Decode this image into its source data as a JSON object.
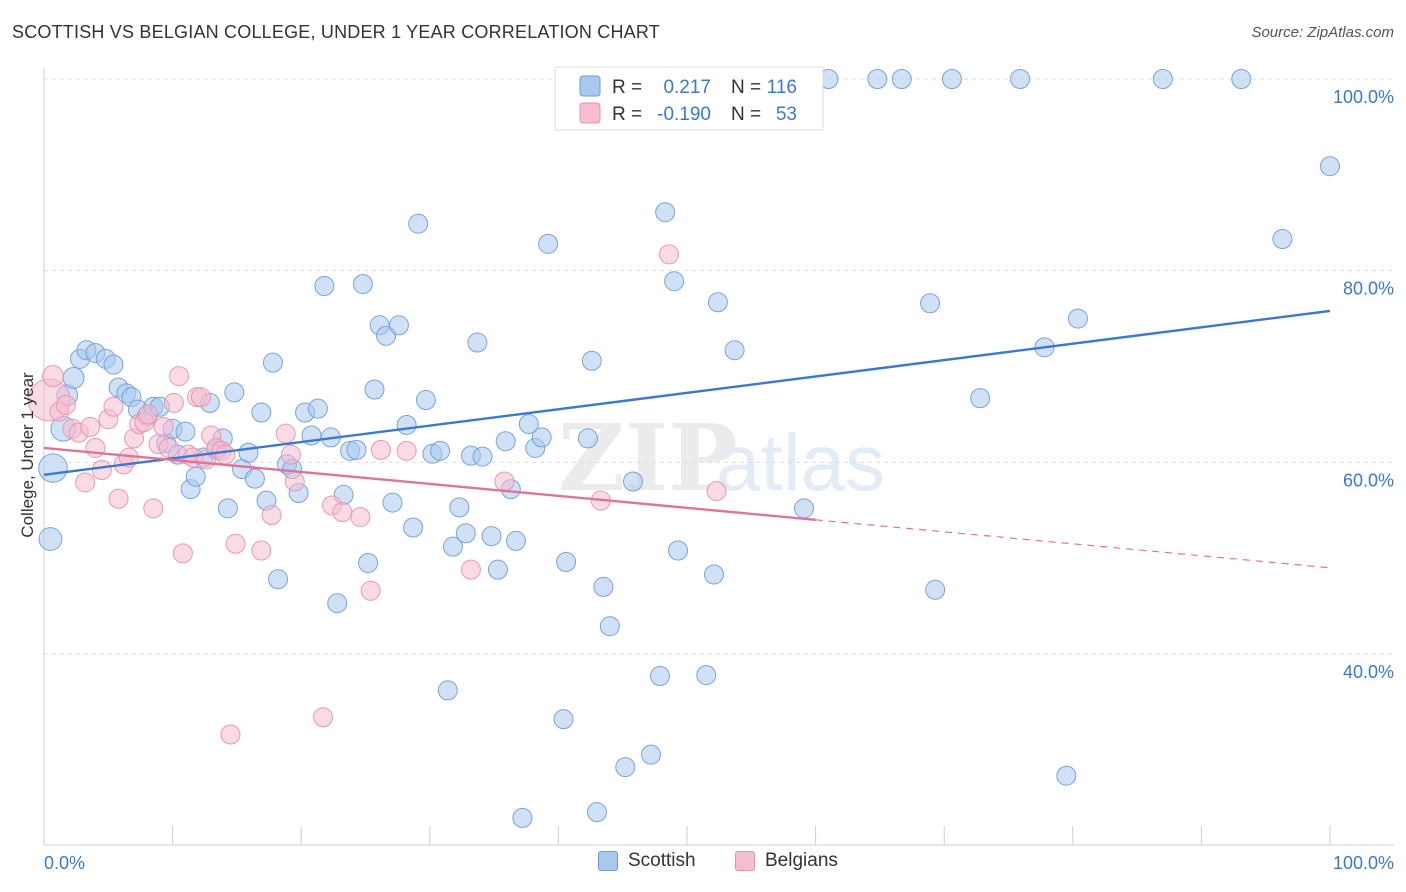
{
  "title": "SCOTTISH VS BELGIAN COLLEGE, UNDER 1 YEAR CORRELATION CHART",
  "source": "Source: ZipAtlas.com",
  "colors": {
    "scottish_fill": "#a9c8ef",
    "scottish_stroke": "#6c9bd8",
    "scottish_line": "#3b78d0",
    "belgian_fill": "#f6bcd0",
    "belgian_stroke": "#e590ad",
    "belgian_line": "#e0739a",
    "axis_label": "#3b78d0"
  },
  "legend": {
    "rows": [
      {
        "r_label": "R =",
        "r_value": "0.217",
        "n_label": "N =",
        "n_value": "116"
      },
      {
        "r_label": "R =",
        "r_value": "-0.190",
        "n_label": "N =",
        "n_value": "53"
      }
    ]
  },
  "watermark": {
    "part1": "ZIP",
    "part2": "atlas"
  },
  "chart_data": {
    "type": "scatter",
    "title": "SCOTTISH VS BELGIAN COLLEGE, UNDER 1 YEAR CORRELATION CHART",
    "xlabel": "",
    "ylabel": "College, Under 1 year",
    "xlim": [
      0,
      100
    ],
    "ylim": [
      22,
      102
    ],
    "x_tick_labels": [
      "0.0%",
      "100.0%"
    ],
    "y_ticks": [
      40,
      60,
      80,
      100
    ],
    "y_tick_labels": [
      "40.0%",
      "60.0%",
      "80.0%",
      "100.0%"
    ],
    "grid": true,
    "legend_position": "top-center",
    "series": [
      {
        "name": "Scottish",
        "regression": {
          "x": [
            0,
            100
          ],
          "y": [
            58.7,
            75.8
          ],
          "extend_dashed_to": null
        },
        "points": [
          [
            0.7,
            59.4,
            1.5
          ],
          [
            0.5,
            52.0,
            1.2
          ],
          [
            1.5,
            63.5,
            1.3
          ],
          [
            1.8,
            67.0,
            1.1
          ],
          [
            2.3,
            68.8,
            1.1
          ],
          [
            2.8,
            70.8,
            1.0
          ],
          [
            3.3,
            71.7,
            1.0
          ],
          [
            4.0,
            71.4,
            1.0
          ],
          [
            4.8,
            70.8,
            1.0
          ],
          [
            5.4,
            70.2,
            1.0
          ],
          [
            5.8,
            67.8,
            1.0
          ],
          [
            6.4,
            67.2,
            1.0
          ],
          [
            6.8,
            66.8,
            1.0
          ],
          [
            7.3,
            65.5,
            1.0
          ],
          [
            8.0,
            64.8,
            1.0
          ],
          [
            8.5,
            65.8,
            1.0
          ],
          [
            9.0,
            65.8,
            1.0
          ],
          [
            9.5,
            62.0,
            1.0
          ],
          [
            10.0,
            63.5,
            1.0
          ],
          [
            10.4,
            60.8,
            1.0
          ],
          [
            11.0,
            63.2,
            1.0
          ],
          [
            11.4,
            57.2,
            1.0
          ],
          [
            11.8,
            58.5,
            1.0
          ],
          [
            12.4,
            60.5,
            1.0
          ],
          [
            12.9,
            66.2,
            1.0
          ],
          [
            13.4,
            61.3,
            1.0
          ],
          [
            13.9,
            62.5,
            1.0
          ],
          [
            14.3,
            55.2,
            1.0
          ],
          [
            14.8,
            67.3,
            1.0
          ],
          [
            15.4,
            59.3,
            1.0
          ],
          [
            15.9,
            61.0,
            1.0
          ],
          [
            16.4,
            58.3,
            1.0
          ],
          [
            16.9,
            65.2,
            1.0
          ],
          [
            17.3,
            56.0,
            1.0
          ],
          [
            17.8,
            70.4,
            1.0
          ],
          [
            18.2,
            47.8,
            1.0
          ],
          [
            18.9,
            59.8,
            1.0
          ],
          [
            19.3,
            59.3,
            1.0
          ],
          [
            19.8,
            56.8,
            1.0
          ],
          [
            20.3,
            65.2,
            1.0
          ],
          [
            20.8,
            62.8,
            1.0
          ],
          [
            21.3,
            65.6,
            1.0
          ],
          [
            21.8,
            78.4,
            1.0
          ],
          [
            22.3,
            62.6,
            1.0
          ],
          [
            22.8,
            45.3,
            1.0
          ],
          [
            23.3,
            56.6,
            1.0
          ],
          [
            23.8,
            61.2,
            1.0
          ],
          [
            24.3,
            61.3,
            1.0
          ],
          [
            24.8,
            78.6,
            1.0
          ],
          [
            25.2,
            49.5,
            1.0
          ],
          [
            25.7,
            67.6,
            1.0
          ],
          [
            26.1,
            74.3,
            1.0
          ],
          [
            26.6,
            73.2,
            1.0
          ],
          [
            27.1,
            55.8,
            1.0
          ],
          [
            27.6,
            74.3,
            1.0
          ],
          [
            28.2,
            63.9,
            1.0
          ],
          [
            28.7,
            53.2,
            1.0
          ],
          [
            29.1,
            84.9,
            1.0
          ],
          [
            29.7,
            66.5,
            1.0
          ],
          [
            30.2,
            60.9,
            1.0
          ],
          [
            30.8,
            61.2,
            1.0
          ],
          [
            31.4,
            36.2,
            1.0
          ],
          [
            31.8,
            51.2,
            1.0
          ],
          [
            32.3,
            55.3,
            1.0
          ],
          [
            32.8,
            52.6,
            1.0
          ],
          [
            33.2,
            60.7,
            1.0
          ],
          [
            33.7,
            72.5,
            1.0
          ],
          [
            34.1,
            60.6,
            1.0
          ],
          [
            34.8,
            52.3,
            1.0
          ],
          [
            35.3,
            48.8,
            1.0
          ],
          [
            35.9,
            62.2,
            1.0
          ],
          [
            36.3,
            57.2,
            1.0
          ],
          [
            36.7,
            51.8,
            1.0
          ],
          [
            37.2,
            22.9,
            1.0
          ],
          [
            37.7,
            64.0,
            1.0
          ],
          [
            38.2,
            61.5,
            1.0
          ],
          [
            38.7,
            62.6,
            1.0
          ],
          [
            39.2,
            82.8,
            1.0
          ],
          [
            40.4,
            33.2,
            1.0
          ],
          [
            40.6,
            49.6,
            1.0
          ],
          [
            41.2,
            100.0,
            1.0
          ],
          [
            42.3,
            62.5,
            1.0
          ],
          [
            42.6,
            70.6,
            1.0
          ],
          [
            43.0,
            23.5,
            1.0
          ],
          [
            43.5,
            47.0,
            1.0
          ],
          [
            44.0,
            42.9,
            1.0
          ],
          [
            45.2,
            28.2,
            1.0
          ],
          [
            45.8,
            58.0,
            1.0
          ],
          [
            47.2,
            29.5,
            1.0
          ],
          [
            47.9,
            37.7,
            1.0
          ],
          [
            48.3,
            86.1,
            1.0
          ],
          [
            49.0,
            78.9,
            1.0
          ],
          [
            49.3,
            50.8,
            1.0
          ],
          [
            51.5,
            37.8,
            1.0
          ],
          [
            52.1,
            48.3,
            1.0
          ],
          [
            52.4,
            76.7,
            1.0
          ],
          [
            53.7,
            71.7,
            1.0
          ],
          [
            55.9,
            100.0,
            1.0
          ],
          [
            59.1,
            55.2,
            1.0
          ],
          [
            61.0,
            100.0,
            1.0
          ],
          [
            64.8,
            100.0,
            1.0
          ],
          [
            66.7,
            100.0,
            1.0
          ],
          [
            68.9,
            76.6,
            1.0
          ],
          [
            69.3,
            46.7,
            1.0
          ],
          [
            70.6,
            100.0,
            1.0
          ],
          [
            72.8,
            66.7,
            1.0
          ],
          [
            75.9,
            100.0,
            1.0
          ],
          [
            77.8,
            72.0,
            1.0
          ],
          [
            79.5,
            27.3,
            1.0
          ],
          [
            80.4,
            75.0,
            1.0
          ],
          [
            87.0,
            100.0,
            1.0
          ],
          [
            93.1,
            100.0,
            1.0
          ],
          [
            96.3,
            83.3,
            1.0
          ],
          [
            100.0,
            90.9,
            1.0
          ]
        ]
      },
      {
        "name": "Belgians",
        "regression": {
          "x": [
            0,
            60
          ],
          "y": [
            61.5,
            54.0
          ],
          "extend_dashed_to": {
            "x": 100,
            "y": 49.0
          }
        },
        "points": [
          [
            0.4,
            66.5,
            2.2
          ],
          [
            0.7,
            69.0,
            1.1
          ],
          [
            1.2,
            65.3,
            1.0
          ],
          [
            1.7,
            66.0,
            1.0
          ],
          [
            2.2,
            63.5,
            1.0
          ],
          [
            2.7,
            63.1,
            1.0
          ],
          [
            3.2,
            57.9,
            1.0
          ],
          [
            3.6,
            63.7,
            1.0
          ],
          [
            4.0,
            61.5,
            1.0
          ],
          [
            4.5,
            59.2,
            1.0
          ],
          [
            5.0,
            64.5,
            1.0
          ],
          [
            5.4,
            65.8,
            1.0
          ],
          [
            5.8,
            56.2,
            1.0
          ],
          [
            6.2,
            59.8,
            1.0
          ],
          [
            6.6,
            60.5,
            1.0
          ],
          [
            7.0,
            62.5,
            1.0
          ],
          [
            7.4,
            64.0,
            1.0
          ],
          [
            7.8,
            64.2,
            1.0
          ],
          [
            8.1,
            65.0,
            1.0
          ],
          [
            8.5,
            55.2,
            1.0
          ],
          [
            8.9,
            61.9,
            1.0
          ],
          [
            9.3,
            63.7,
            1.0
          ],
          [
            9.7,
            61.5,
            1.0
          ],
          [
            10.1,
            66.2,
            1.0
          ],
          [
            10.5,
            69.0,
            1.0
          ],
          [
            10.8,
            50.5,
            1.0
          ],
          [
            11.2,
            60.8,
            1.0
          ],
          [
            11.6,
            60.5,
            1.0
          ],
          [
            11.9,
            66.8,
            1.0
          ],
          [
            12.2,
            66.8,
            1.0
          ],
          [
            12.6,
            60.3,
            1.0
          ],
          [
            13.0,
            62.8,
            1.0
          ],
          [
            13.4,
            61.5,
            1.0
          ],
          [
            13.8,
            61.2,
            1.0
          ],
          [
            14.1,
            60.8,
            1.0
          ],
          [
            14.5,
            31.6,
            1.0
          ],
          [
            14.9,
            51.5,
            1.0
          ],
          [
            16.9,
            50.8,
            1.0
          ],
          [
            17.7,
            54.5,
            1.0
          ],
          [
            18.8,
            63.0,
            1.0
          ],
          [
            19.2,
            60.8,
            1.0
          ],
          [
            19.5,
            58.0,
            1.0
          ],
          [
            21.7,
            33.4,
            1.0
          ],
          [
            22.4,
            55.5,
            1.0
          ],
          [
            23.2,
            54.8,
            1.0
          ],
          [
            24.6,
            54.3,
            1.0
          ],
          [
            25.4,
            46.6,
            1.0
          ],
          [
            26.2,
            61.3,
            1.0
          ],
          [
            28.2,
            61.2,
            1.0
          ],
          [
            33.2,
            48.8,
            1.0
          ],
          [
            35.8,
            58.0,
            1.0
          ],
          [
            43.3,
            56.0,
            1.0
          ],
          [
            48.6,
            81.7,
            1.0
          ],
          [
            52.3,
            57.0,
            1.0
          ]
        ]
      }
    ]
  }
}
